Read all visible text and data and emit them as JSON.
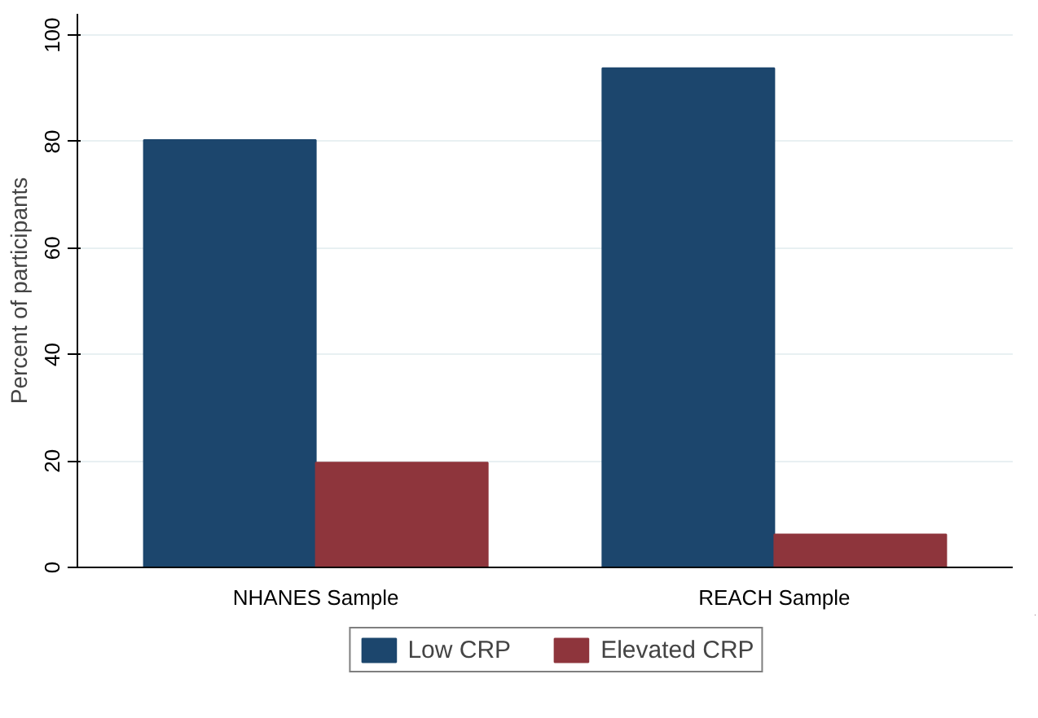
{
  "chart_data": {
    "type": "bar",
    "ylabel": "Percent of participants",
    "categories": [
      "NHANES Sample",
      "REACH Sample"
    ],
    "series": [
      {
        "name": "Low CRP",
        "color": "#1c466d",
        "values": [
          80.3,
          93.8
        ]
      },
      {
        "name": "Elevated CRP",
        "color": "#8e353c",
        "values": [
          19.7,
          6.2
        ]
      }
    ],
    "ylim": [
      0,
      104
    ],
    "yticks": [
      0,
      20,
      40,
      60,
      80,
      100
    ],
    "grid": "y",
    "legend": "bottom"
  }
}
